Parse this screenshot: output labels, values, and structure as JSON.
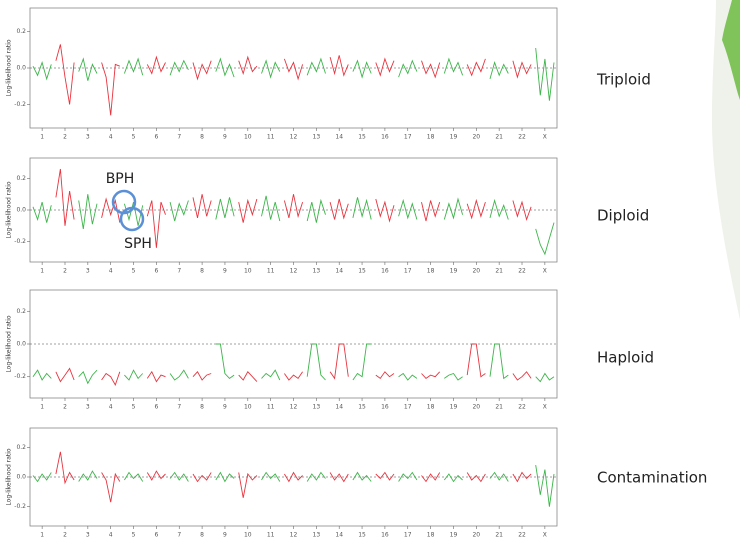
{
  "chart_data": [
    {
      "type": "line",
      "label": "Triploid",
      "y_label": "Log-likelihood ratio",
      "ylim": [
        -0.33,
        0.33
      ],
      "yticks": [
        -0.2,
        {
          "value": 0,
          "label": "0.0"
        },
        0.2
      ],
      "zero_line": true,
      "series": [
        {
          "name": "1",
          "color": "#3cb54a",
          "values": [
            0.01,
            -0.04,
            0.03,
            -0.06,
            0.02
          ]
        },
        {
          "name": "2",
          "color": "#e8343f",
          "values": [
            0.04,
            0.13,
            -0.05,
            -0.2,
            0.03
          ]
        },
        {
          "name": "3",
          "color": "#3cb54a",
          "values": [
            -0.02,
            0.05,
            -0.07,
            0.02,
            -0.03
          ]
        },
        {
          "name": "4",
          "color": "#e8343f",
          "values": [
            0.03,
            -0.05,
            -0.26,
            0.02,
            0.01
          ]
        },
        {
          "name": "5",
          "color": "#3cb54a",
          "values": [
            -0.03,
            0.04,
            -0.02,
            0.05,
            -0.04
          ]
        },
        {
          "name": "6",
          "color": "#e8343f",
          "values": [
            0.02,
            -0.03,
            0.06,
            -0.02,
            0.03
          ]
        },
        {
          "name": "7",
          "color": "#3cb54a",
          "values": [
            -0.04,
            0.03,
            -0.02,
            0.04,
            -0.01
          ]
        },
        {
          "name": "8",
          "color": "#e8343f",
          "values": [
            0.03,
            -0.06,
            0.02,
            -0.03,
            0.04
          ]
        },
        {
          "name": "9",
          "color": "#3cb54a",
          "values": [
            -0.02,
            0.05,
            -0.04,
            0.02,
            -0.05
          ]
        },
        {
          "name": "10",
          "color": "#e8343f",
          "values": [
            0.04,
            -0.03,
            0.06,
            -0.02,
            0.01
          ]
        },
        {
          "name": "11",
          "color": "#3cb54a",
          "values": [
            -0.03,
            0.04,
            -0.05,
            0.03,
            -0.02
          ]
        },
        {
          "name": "12",
          "color": "#e8343f",
          "values": [
            0.05,
            -0.02,
            0.03,
            -0.06,
            0.02
          ]
        },
        {
          "name": "13",
          "color": "#3cb54a",
          "values": [
            -0.04,
            0.03,
            -0.02,
            0.05,
            -0.03
          ]
        },
        {
          "name": "14",
          "color": "#e8343f",
          "values": [
            0.06,
            -0.03,
            0.07,
            -0.04,
            0.02
          ]
        },
        {
          "name": "15",
          "color": "#3cb54a",
          "values": [
            -0.02,
            0.04,
            -0.05,
            0.03,
            -0.03
          ]
        },
        {
          "name": "16",
          "color": "#e8343f",
          "values": [
            0.03,
            -0.04,
            0.05,
            -0.02,
            0.04
          ]
        },
        {
          "name": "17",
          "color": "#3cb54a",
          "values": [
            -0.05,
            0.02,
            -0.03,
            0.04,
            -0.02
          ]
        },
        {
          "name": "18",
          "color": "#e8343f",
          "values": [
            0.04,
            -0.03,
            0.02,
            -0.05,
            0.03
          ]
        },
        {
          "name": "19",
          "color": "#3cb54a",
          "values": [
            -0.03,
            0.05,
            -0.02,
            0.03,
            -0.04
          ]
        },
        {
          "name": "20",
          "color": "#e8343f",
          "values": [
            0.02,
            -0.04,
            0.03,
            -0.02,
            0.05
          ]
        },
        {
          "name": "21",
          "color": "#3cb54a",
          "values": [
            -0.06,
            0.03,
            -0.04,
            0.02,
            -0.03
          ]
        },
        {
          "name": "22",
          "color": "#e8343f",
          "values": [
            0.04,
            -0.05,
            0.03,
            -0.03,
            0.02
          ]
        },
        {
          "name": "X",
          "color": "#3cb54a",
          "values": [
            0.11,
            -0.15,
            0.05,
            -0.18,
            0.03
          ]
        }
      ]
    },
    {
      "type": "line",
      "label": "Diploid",
      "y_label": "Log-likelihood ratio",
      "ylim": [
        -0.33,
        0.33
      ],
      "yticks": [
        -0.2,
        {
          "value": 0,
          "label": "0.0"
        },
        0.2
      ],
      "zero_line": true,
      "annotations": [
        "BPH",
        "SPH"
      ],
      "series": [
        {
          "name": "1",
          "color": "#3cb54a",
          "values": [
            0.02,
            -0.06,
            0.05,
            -0.08,
            0.03
          ]
        },
        {
          "name": "2",
          "color": "#e8343f",
          "values": [
            0.08,
            0.26,
            -0.1,
            0.12,
            -0.06
          ]
        },
        {
          "name": "3",
          "color": "#3cb54a",
          "values": [
            0.06,
            -0.12,
            0.1,
            -0.09,
            0.04
          ]
        },
        {
          "name": "4",
          "color": "#e8343f",
          "values": [
            -0.05,
            0.07,
            -0.03,
            0.06,
            -0.08
          ]
        },
        {
          "name": "5",
          "color": "#3cb54a",
          "values": [
            0.04,
            -0.06,
            0.05,
            -0.1,
            0.03
          ]
        },
        {
          "name": "6",
          "color": "#e8343f",
          "values": [
            -0.04,
            0.06,
            -0.24,
            0.05,
            -0.03
          ]
        },
        {
          "name": "7",
          "color": "#3cb54a",
          "values": [
            0.05,
            -0.07,
            0.04,
            -0.03,
            0.06
          ]
        },
        {
          "name": "8",
          "color": "#e8343f",
          "values": [
            0.08,
            -0.05,
            0.1,
            -0.04,
            0.06
          ]
        },
        {
          "name": "9",
          "color": "#3cb54a",
          "values": [
            -0.06,
            0.07,
            -0.05,
            0.08,
            -0.04
          ]
        },
        {
          "name": "10",
          "color": "#e8343f",
          "values": [
            0.05,
            -0.08,
            0.06,
            -0.03,
            0.07
          ]
        },
        {
          "name": "11",
          "color": "#3cb54a",
          "values": [
            -0.04,
            0.09,
            -0.06,
            0.05,
            -0.07
          ]
        },
        {
          "name": "12",
          "color": "#e8343f",
          "values": [
            0.06,
            -0.05,
            0.1,
            -0.04,
            0.05
          ]
        },
        {
          "name": "13",
          "color": "#3cb54a",
          "values": [
            -0.07,
            0.05,
            -0.08,
            0.06,
            -0.03
          ]
        },
        {
          "name": "14",
          "color": "#e8343f",
          "values": [
            0.05,
            -0.06,
            0.07,
            -0.05,
            0.04
          ]
        },
        {
          "name": "15",
          "color": "#3cb54a",
          "values": [
            -0.05,
            0.08,
            -0.04,
            0.06,
            -0.06
          ]
        },
        {
          "name": "16",
          "color": "#e8343f",
          "values": [
            0.07,
            -0.04,
            0.05,
            -0.07,
            0.03
          ]
        },
        {
          "name": "17",
          "color": "#3cb54a",
          "values": [
            -0.04,
            0.06,
            -0.05,
            0.04,
            -0.06
          ]
        },
        {
          "name": "18",
          "color": "#e8343f",
          "values": [
            0.05,
            -0.07,
            0.06,
            -0.04,
            0.05
          ]
        },
        {
          "name": "19",
          "color": "#3cb54a",
          "values": [
            -0.06,
            0.04,
            -0.05,
            0.07,
            -0.03
          ]
        },
        {
          "name": "20",
          "color": "#e8343f",
          "values": [
            0.04,
            -0.05,
            0.06,
            -0.04,
            0.05
          ]
        },
        {
          "name": "21",
          "color": "#3cb54a",
          "values": [
            -0.05,
            0.06,
            -0.04,
            0.03,
            -0.06
          ]
        },
        {
          "name": "22",
          "color": "#e8343f",
          "values": [
            0.06,
            -0.04,
            0.05,
            -0.06,
            0.02
          ]
        },
        {
          "name": "X",
          "color": "#3cb54a",
          "values": [
            -0.12,
            -0.22,
            -0.28,
            -0.18,
            -0.08
          ]
        }
      ]
    },
    {
      "type": "line",
      "label": "Haploid",
      "y_label": "Log-likelihood ratio",
      "ylim": [
        -0.33,
        0.33
      ],
      "yticks": [
        -0.2,
        {
          "value": 0,
          "label": "0.0"
        },
        0.2
      ],
      "zero_line": true,
      "series": [
        {
          "name": "1",
          "color": "#3cb54a",
          "values": [
            -0.2,
            -0.16,
            -0.22,
            -0.18,
            -0.21
          ]
        },
        {
          "name": "2",
          "color": "#e8343f",
          "values": [
            -0.17,
            -0.23,
            -0.19,
            -0.15,
            -0.22
          ]
        },
        {
          "name": "3",
          "color": "#3cb54a",
          "values": [
            -0.2,
            -0.17,
            -0.24,
            -0.19,
            -0.16
          ]
        },
        {
          "name": "4",
          "color": "#e8343f",
          "values": [
            -0.22,
            -0.18,
            -0.2,
            -0.25,
            -0.17
          ]
        },
        {
          "name": "5",
          "color": "#3cb54a",
          "values": [
            -0.19,
            -0.22,
            -0.16,
            -0.21,
            -0.18
          ]
        },
        {
          "name": "6",
          "color": "#e8343f",
          "values": [
            -0.21,
            -0.17,
            -0.23,
            -0.19,
            -0.2
          ]
        },
        {
          "name": "7",
          "color": "#3cb54a",
          "values": [
            -0.18,
            -0.22,
            -0.2,
            -0.16,
            -0.21
          ]
        },
        {
          "name": "8",
          "color": "#e8343f",
          "values": [
            -0.2,
            -0.17,
            -0.22,
            -0.19,
            -0.18
          ]
        },
        {
          "name": "9",
          "color": "#3cb54a",
          "values": [
            0,
            0,
            -0.18,
            -0.21,
            -0.19
          ]
        },
        {
          "name": "10",
          "color": "#e8343f",
          "values": [
            -0.19,
            -0.22,
            -0.17,
            -0.2,
            -0.23
          ]
        },
        {
          "name": "11",
          "color": "#3cb54a",
          "values": [
            -0.21,
            -0.18,
            -0.2,
            -0.16,
            -0.22
          ]
        },
        {
          "name": "12",
          "color": "#e8343f",
          "values": [
            -0.18,
            -0.22,
            -0.19,
            -0.21,
            -0.17
          ]
        },
        {
          "name": "13",
          "color": "#3cb54a",
          "values": [
            -0.2,
            0,
            0,
            -0.19,
            -0.22
          ]
        },
        {
          "name": "14",
          "color": "#e8343f",
          "values": [
            -0.17,
            -0.21,
            0,
            0,
            -0.2
          ]
        },
        {
          "name": "15",
          "color": "#3cb54a",
          "values": [
            -0.22,
            -0.18,
            -0.2,
            0,
            0
          ]
        },
        {
          "name": "16",
          "color": "#e8343f",
          "values": [
            -0.19,
            -0.21,
            -0.17,
            -0.2,
            -0.18
          ]
        },
        {
          "name": "17",
          "color": "#3cb54a",
          "values": [
            -0.2,
            -0.18,
            -0.22,
            -0.19,
            -0.21
          ]
        },
        {
          "name": "18",
          "color": "#e8343f",
          "values": [
            -0.18,
            -0.21,
            -0.19,
            -0.2,
            -0.17
          ]
        },
        {
          "name": "19",
          "color": "#3cb54a",
          "values": [
            -0.21,
            -0.19,
            -0.18,
            -0.22,
            -0.2
          ]
        },
        {
          "name": "20",
          "color": "#e8343f",
          "values": [
            -0.19,
            0,
            0,
            -0.2,
            -0.18
          ]
        },
        {
          "name": "21",
          "color": "#3cb54a",
          "values": [
            -0.2,
            0,
            0,
            -0.21,
            -0.19
          ]
        },
        {
          "name": "22",
          "color": "#e8343f",
          "values": [
            -0.18,
            -0.22,
            -0.2,
            -0.17,
            -0.21
          ]
        },
        {
          "name": "X",
          "color": "#3cb54a",
          "values": [
            -0.2,
            -0.23,
            -0.18,
            -0.22,
            -0.2
          ]
        }
      ]
    },
    {
      "type": "line",
      "label": "Contamination",
      "y_label": "Log-likelihood ratio",
      "ylim": [
        -0.33,
        0.33
      ],
      "yticks": [
        -0.2,
        {
          "value": 0,
          "label": "0.0"
        },
        0.2
      ],
      "zero_line": true,
      "series": [
        {
          "name": "1",
          "color": "#3cb54a",
          "values": [
            0.01,
            -0.03,
            0.02,
            -0.02,
            0.03
          ]
        },
        {
          "name": "2",
          "color": "#e8343f",
          "values": [
            0.02,
            0.17,
            -0.04,
            0.03,
            -0.02
          ]
        },
        {
          "name": "3",
          "color": "#3cb54a",
          "values": [
            -0.03,
            0.02,
            -0.02,
            0.04,
            -0.01
          ]
        },
        {
          "name": "4",
          "color": "#e8343f",
          "values": [
            0.03,
            -0.02,
            -0.17,
            0.02,
            -0.03
          ]
        },
        {
          "name": "5",
          "color": "#3cb54a",
          "values": [
            -0.02,
            0.03,
            -0.01,
            0.02,
            -0.03
          ]
        },
        {
          "name": "6",
          "color": "#e8343f",
          "values": [
            0.03,
            -0.02,
            0.04,
            -0.01,
            0.02
          ]
        },
        {
          "name": "7",
          "color": "#3cb54a",
          "values": [
            -0.01,
            0.03,
            -0.02,
            0.02,
            -0.03
          ]
        },
        {
          "name": "8",
          "color": "#e8343f",
          "values": [
            0.02,
            -0.03,
            0.01,
            -0.02,
            0.03
          ]
        },
        {
          "name": "9",
          "color": "#3cb54a",
          "values": [
            -0.02,
            0.03,
            -0.03,
            0.02,
            -0.01
          ]
        },
        {
          "name": "10",
          "color": "#e8343f",
          "values": [
            0.03,
            -0.14,
            0.02,
            -0.02,
            0.01
          ]
        },
        {
          "name": "11",
          "color": "#3cb54a",
          "values": [
            -0.02,
            0.03,
            -0.01,
            0.02,
            -0.03
          ]
        },
        {
          "name": "12",
          "color": "#e8343f",
          "values": [
            0.02,
            -0.03,
            0.03,
            -0.02,
            0.01
          ]
        },
        {
          "name": "13",
          "color": "#3cb54a",
          "values": [
            -0.03,
            0.02,
            -0.02,
            0.03,
            -0.01
          ]
        },
        {
          "name": "14",
          "color": "#e8343f",
          "values": [
            0.03,
            -0.02,
            0.02,
            -0.03,
            0.02
          ]
        },
        {
          "name": "15",
          "color": "#3cb54a",
          "values": [
            -0.02,
            0.03,
            -0.02,
            0.01,
            -0.03
          ]
        },
        {
          "name": "16",
          "color": "#e8343f",
          "values": [
            0.02,
            -0.01,
            0.03,
            -0.02,
            0.02
          ]
        },
        {
          "name": "17",
          "color": "#3cb54a",
          "values": [
            -0.03,
            0.02,
            -0.01,
            0.03,
            -0.02
          ]
        },
        {
          "name": "18",
          "color": "#e8343f",
          "values": [
            0.01,
            -0.03,
            0.02,
            -0.02,
            0.03
          ]
        },
        {
          "name": "19",
          "color": "#3cb54a",
          "values": [
            -0.02,
            0.02,
            -0.03,
            0.01,
            -0.02
          ]
        },
        {
          "name": "20",
          "color": "#e8343f",
          "values": [
            0.03,
            -0.02,
            0.01,
            -0.03,
            0.02
          ]
        },
        {
          "name": "21",
          "color": "#3cb54a",
          "values": [
            -0.01,
            0.03,
            -0.02,
            0.02,
            -0.03
          ]
        },
        {
          "name": "22",
          "color": "#e8343f",
          "values": [
            0.02,
            -0.03,
            0.03,
            -0.01,
            0.02
          ]
        },
        {
          "name": "X",
          "color": "#3cb54a",
          "values": [
            0.08,
            -0.12,
            0.05,
            -0.2,
            0.02
          ]
        }
      ]
    }
  ]
}
